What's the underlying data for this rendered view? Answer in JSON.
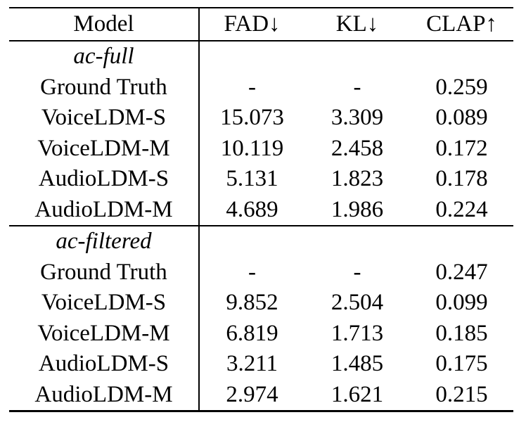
{
  "table": {
    "columns": [
      "Model",
      "FAD↓",
      "KL↓",
      "CLAP↑"
    ],
    "sections": [
      {
        "label": "ac-full",
        "rows": [
          {
            "model": "Ground Truth",
            "fad": "-",
            "kl": "-",
            "clap": "0.259"
          },
          {
            "model": "VoiceLDM-S",
            "fad": "15.073",
            "kl": "3.309",
            "clap": "0.089"
          },
          {
            "model": "VoiceLDM-M",
            "fad": "10.119",
            "kl": "2.458",
            "clap": "0.172"
          },
          {
            "model": "AudioLDM-S",
            "fad": "5.131",
            "kl": "1.823",
            "clap": "0.178"
          },
          {
            "model": "AudioLDM-M",
            "fad": "4.689",
            "kl": "1.986",
            "clap": "0.224"
          }
        ]
      },
      {
        "label": "ac-filtered",
        "rows": [
          {
            "model": "Ground Truth",
            "fad": "-",
            "kl": "-",
            "clap": "0.247"
          },
          {
            "model": "VoiceLDM-S",
            "fad": "9.852",
            "kl": "2.504",
            "clap": "0.099"
          },
          {
            "model": "VoiceLDM-M",
            "fad": "6.819",
            "kl": "1.713",
            "clap": "0.185"
          },
          {
            "model": "AudioLDM-S",
            "fad": "3.211",
            "kl": "1.485",
            "clap": "0.175"
          },
          {
            "model": "AudioLDM-M",
            "fad": "2.974",
            "kl": "1.621",
            "clap": "0.215"
          }
        ]
      }
    ],
    "text_color": "#000000",
    "rule_color": "#000000",
    "background_color": "#ffffff"
  }
}
